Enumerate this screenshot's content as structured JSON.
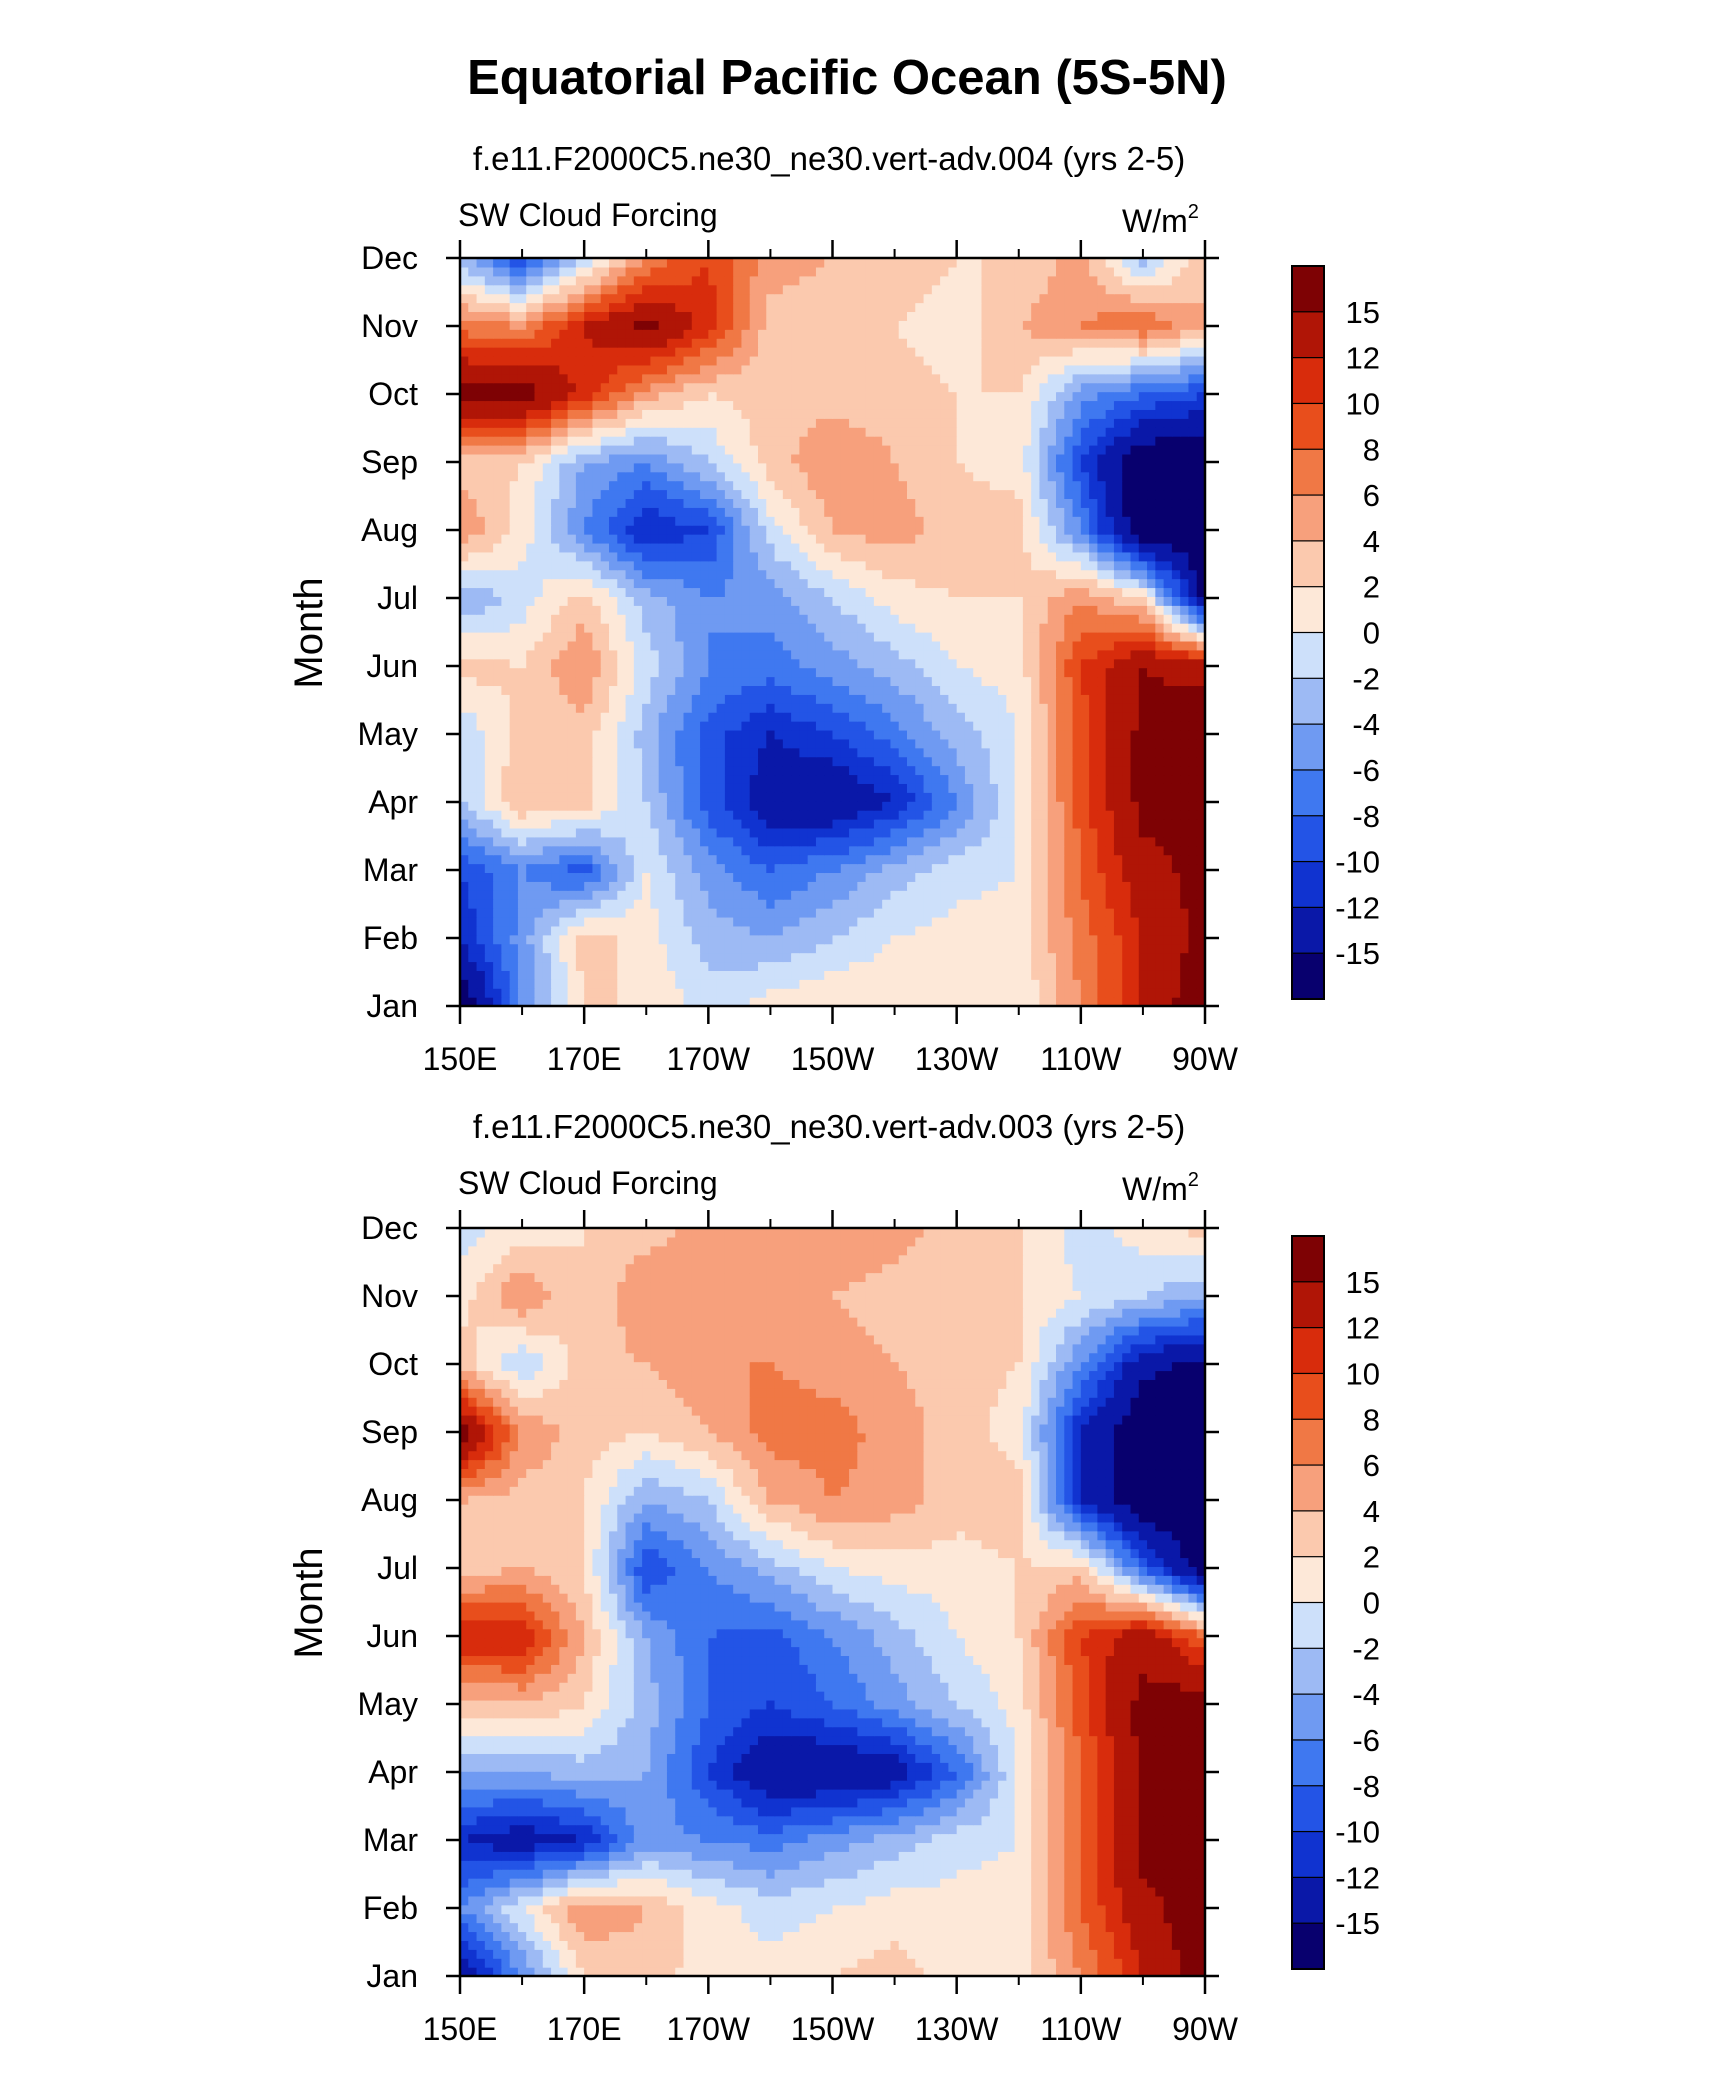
{
  "figure": {
    "title": "Equatorial Pacific Ocean (5S-5N)"
  },
  "chart_data": [
    {
      "type": "heatmap",
      "title": "f.e11.F2000C5.ne30_ne30.vert-adv.004 (yrs 2-5)",
      "left_string": "SW Cloud Forcing",
      "units_label": "W/m",
      "units_sup": "2",
      "ylabel": "Month",
      "xlabel": "",
      "x_ticks": [
        "150E",
        "170E",
        "170W",
        "150W",
        "130W",
        "110W",
        "90W"
      ],
      "y_ticks": [
        "Jan",
        "Feb",
        "Mar",
        "Apr",
        "May",
        "Jun",
        "Jul",
        "Aug",
        "Sep",
        "Oct",
        "Nov",
        "Dec"
      ],
      "x_lon": [
        150,
        160,
        170,
        180,
        190,
        200,
        210,
        220,
        230,
        240,
        250,
        260,
        270
      ],
      "y_month": [
        1,
        2,
        3,
        4,
        5,
        6,
        7,
        8,
        9,
        10,
        11,
        12
      ],
      "values": [
        [
          -18,
          -6,
          2,
          2,
          -1,
          1,
          2,
          2,
          1,
          0,
          6,
          12,
          18
        ],
        [
          -12,
          -5,
          3,
          1,
          -3,
          -4,
          -2,
          0,
          1,
          1,
          7,
          12,
          16
        ],
        [
          -10,
          -6,
          -9,
          0,
          -5,
          -8,
          -6,
          -3,
          -1,
          0,
          8,
          14,
          16
        ],
        [
          -2,
          4,
          3,
          -2,
          -9,
          -14,
          -15,
          -12,
          -6,
          0,
          9,
          16,
          16
        ],
        [
          -2,
          3,
          3,
          -3,
          -9,
          -12,
          -10,
          -7,
          -3,
          0,
          9,
          16,
          17
        ],
        [
          3,
          2,
          6,
          -1,
          -6,
          -7,
          -5,
          -3,
          0,
          1,
          10,
          15,
          14
        ],
        [
          -4,
          -1,
          3,
          -3,
          -6,
          -5,
          -2,
          1,
          2,
          2,
          6,
          2,
          -16
        ],
        [
          6,
          1,
          -6,
          -12,
          -10,
          -1,
          4,
          5,
          3,
          3,
          -6,
          -18,
          -18
        ],
        [
          3,
          2,
          -4,
          -6,
          -2,
          3,
          6,
          4,
          2,
          1,
          -10,
          -18,
          -18
        ],
        [
          17,
          17,
          11,
          5,
          2,
          3,
          3,
          3,
          2,
          2,
          -5,
          -8,
          -10
        ],
        [
          7,
          6,
          12,
          16,
          11,
          3,
          3,
          2,
          1,
          4,
          6,
          8,
          4
        ],
        [
          -3,
          -10,
          -2,
          6,
          10,
          5,
          4,
          3,
          2,
          2,
          5,
          -3,
          4
        ]
      ],
      "colorbar_labels": [
        "15",
        "12",
        "10",
        "8",
        "6",
        "4",
        "2",
        "0",
        "-2",
        "-4",
        "-6",
        "-8",
        "-10",
        "-12",
        "-15"
      ]
    },
    {
      "type": "heatmap",
      "title": "f.e11.F2000C5.ne30_ne30.vert-adv.003 (yrs 2-5)",
      "left_string": "SW Cloud Forcing",
      "units_label": "W/m",
      "units_sup": "2",
      "ylabel": "Month",
      "xlabel": "",
      "x_ticks": [
        "150E",
        "170E",
        "170W",
        "150W",
        "130W",
        "110W",
        "90W"
      ],
      "y_ticks": [
        "Jan",
        "Feb",
        "Mar",
        "Apr",
        "May",
        "Jun",
        "Jul",
        "Aug",
        "Sep",
        "Oct",
        "Nov",
        "Dec"
      ],
      "x_lon": [
        150,
        160,
        170,
        180,
        190,
        200,
        210,
        220,
        230,
        240,
        250,
        260,
        270
      ],
      "y_month": [
        1,
        2,
        3,
        4,
        5,
        6,
        7,
        8,
        9,
        10,
        11,
        12
      ],
      "values": [
        [
          -15,
          -6,
          2,
          3,
          1,
          1,
          2,
          3,
          1,
          1,
          6,
          12,
          17
        ],
        [
          -6,
          0,
          6,
          4,
          1,
          -1,
          0,
          1,
          1,
          1,
          8,
          14,
          17
        ],
        [
          -12,
          -14,
          -12,
          -5,
          -6,
          -7,
          -5,
          -3,
          -1,
          0,
          8,
          16,
          17
        ],
        [
          -4,
          -4,
          -3,
          -4,
          -10,
          -15,
          -15,
          -14,
          -8,
          0,
          8,
          16,
          18
        ],
        [
          3,
          4,
          2,
          -3,
          -8,
          -10,
          -8,
          -5,
          -2,
          1,
          9,
          16,
          17
        ],
        [
          12,
          12,
          4,
          -4,
          -8,
          -9,
          -6,
          -3,
          0,
          2,
          10,
          14,
          8
        ],
        [
          3,
          4,
          2,
          -10,
          -6,
          -3,
          0,
          1,
          1,
          2,
          3,
          -8,
          -18
        ],
        [
          4,
          3,
          2,
          -4,
          -2,
          4,
          6,
          5,
          3,
          3,
          -12,
          -18,
          -18
        ],
        [
          17,
          6,
          3,
          2,
          4,
          7,
          7,
          5,
          3,
          1,
          -12,
          -18,
          -18
        ],
        [
          3,
          -2,
          3,
          4,
          6,
          6,
          5,
          4,
          3,
          2,
          -6,
          -14,
          -16
        ],
        [
          1,
          6,
          2,
          6,
          5,
          5,
          4,
          3,
          2,
          2,
          0,
          -2,
          -4
        ],
        [
          -1,
          1,
          2,
          3,
          5,
          6,
          6,
          5,
          3,
          2,
          -1,
          1,
          3
        ]
      ],
      "colorbar_labels": [
        "15",
        "12",
        "10",
        "8",
        "6",
        "4",
        "2",
        "0",
        "-2",
        "-4",
        "-6",
        "-8",
        "-10",
        "-12",
        "-15"
      ]
    }
  ],
  "palette": {
    "levels": [
      -15,
      -12,
      -10,
      -8,
      -6,
      -4,
      -2,
      0,
      2,
      4,
      6,
      8,
      10,
      12,
      15
    ],
    "colors": [
      "#08006e",
      "#0a18a8",
      "#1033d0",
      "#2354e6",
      "#3f78f0",
      "#6f9af2",
      "#9dbaf4",
      "#cde0fa",
      "#fde8d8",
      "#fbc9ae",
      "#f7a07c",
      "#f07845",
      "#e84e1c",
      "#d82c0c",
      "#b01506",
      "#7e0204"
    ]
  }
}
